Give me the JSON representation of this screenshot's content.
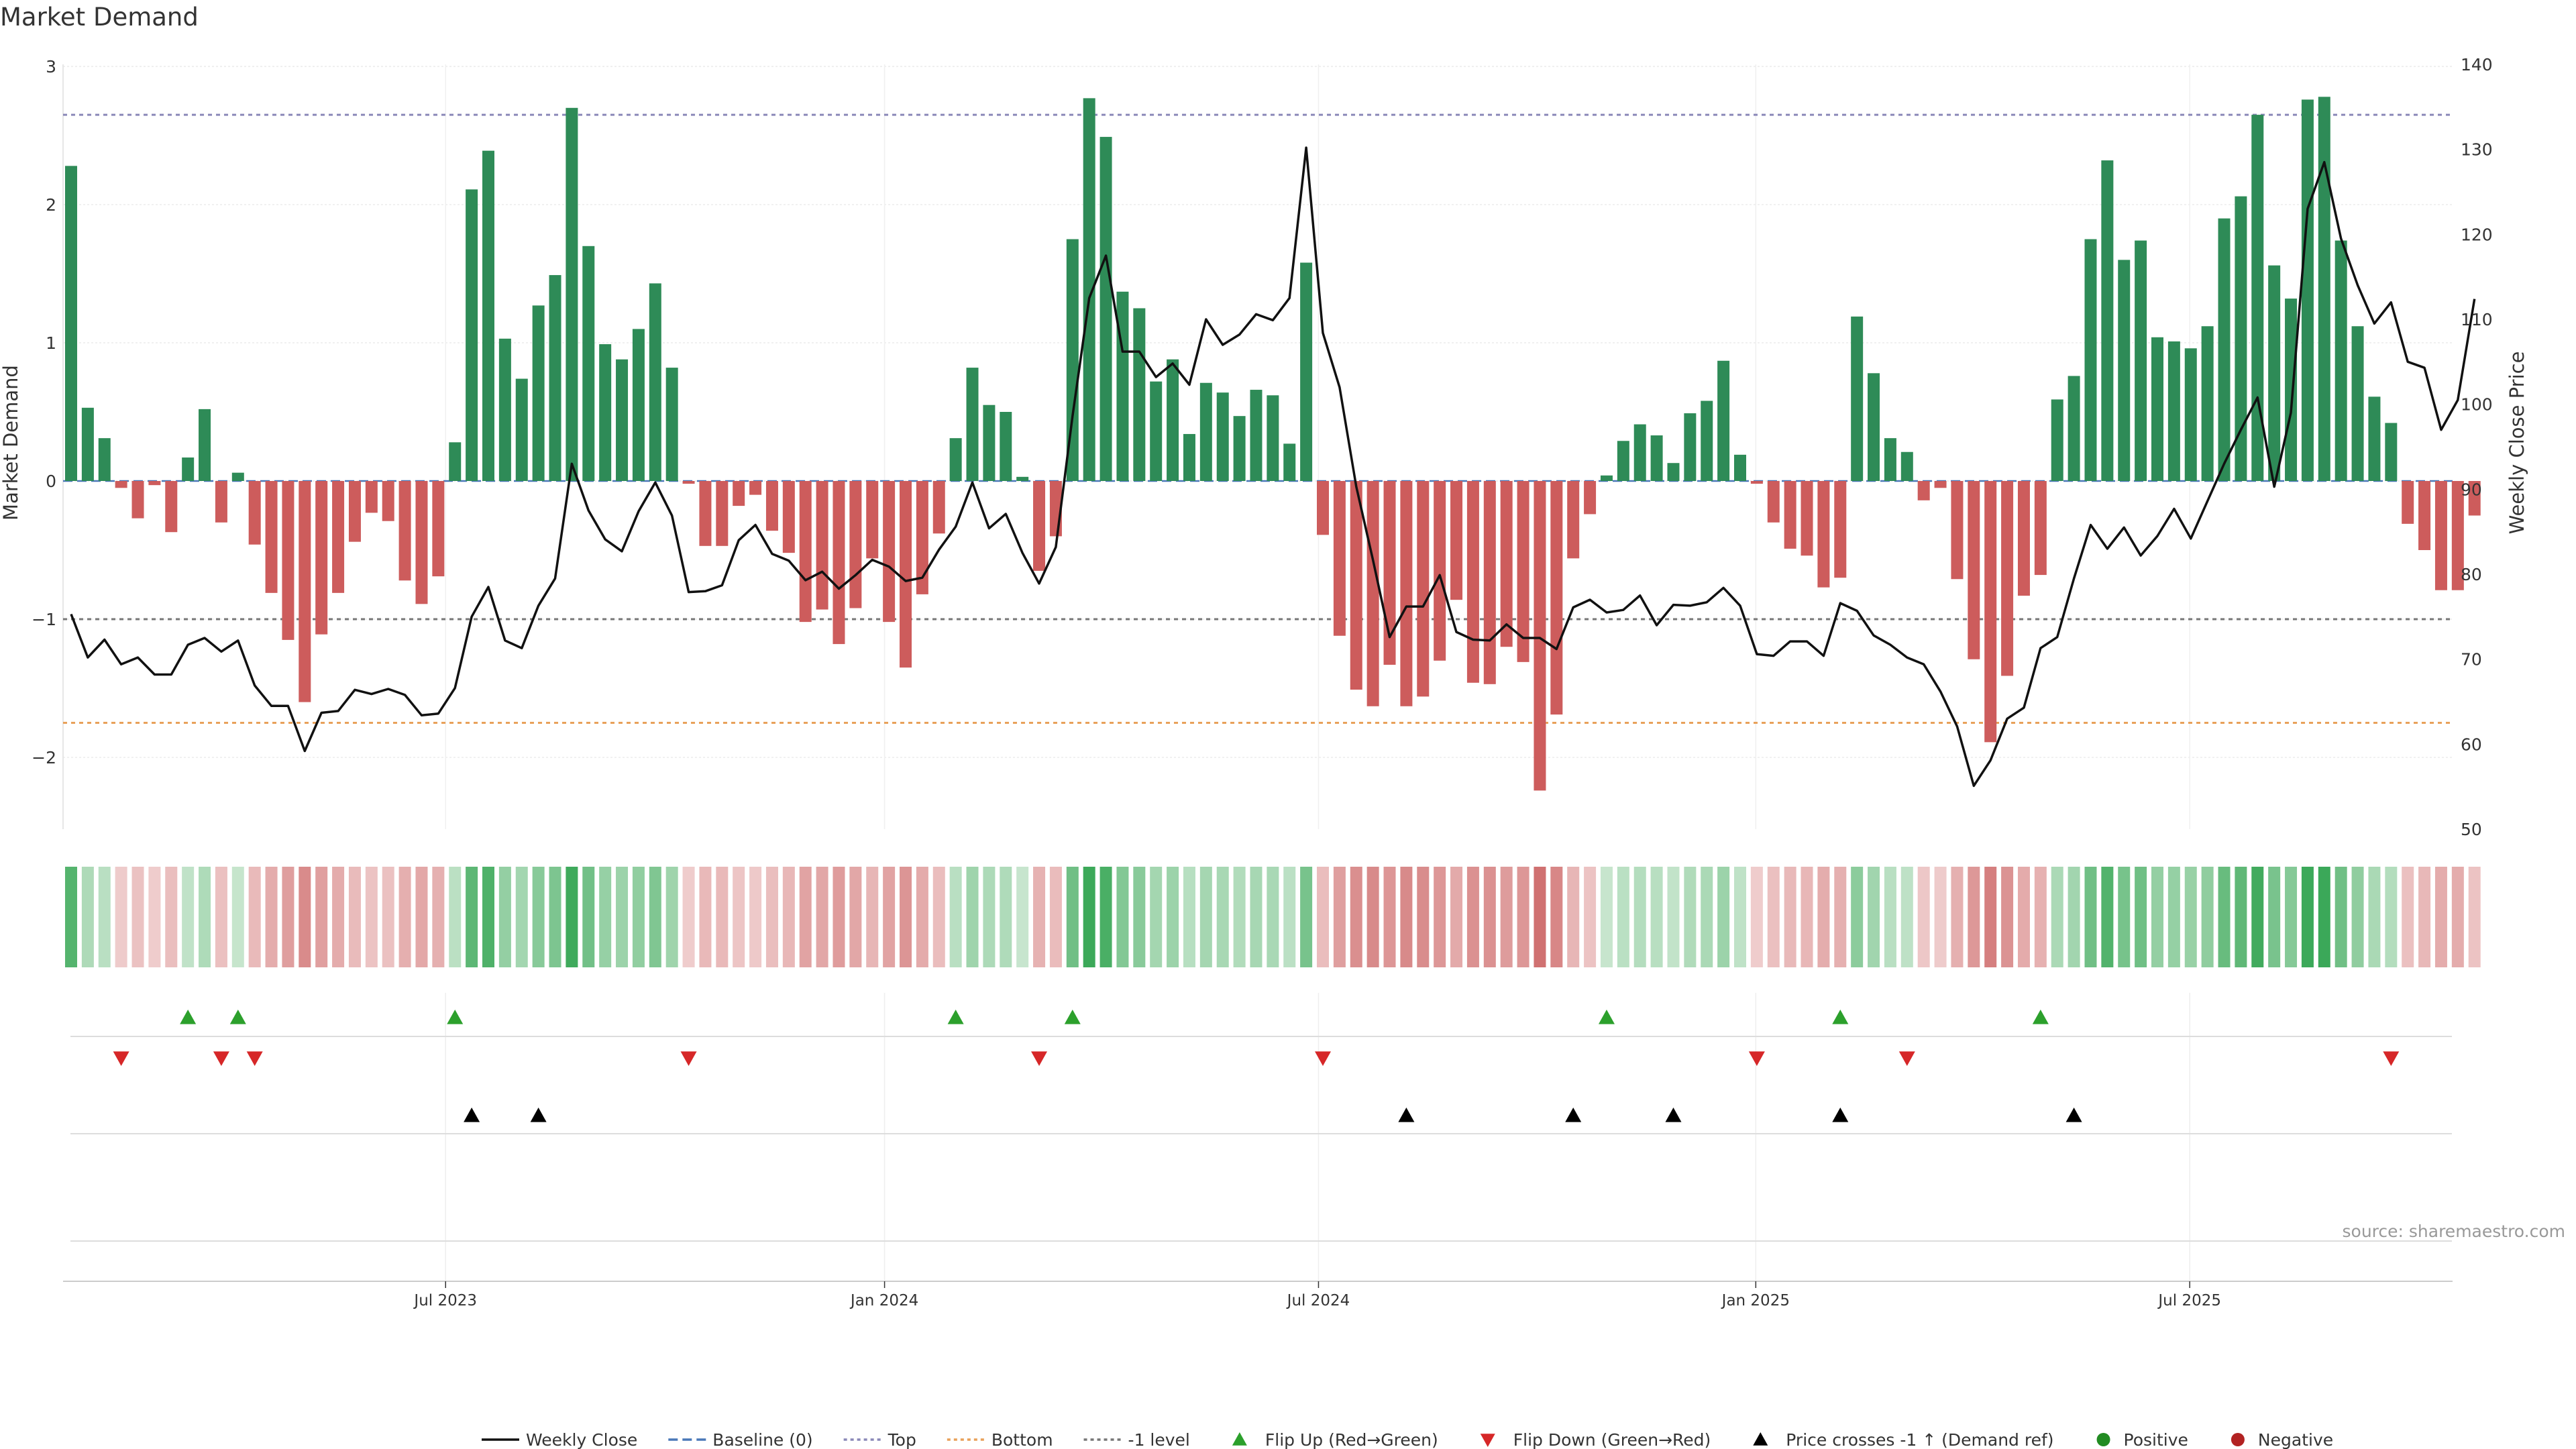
{
  "chart_data": {
    "type": "bar",
    "title": "Market Demand",
    "ylabel": "Market Demand",
    "y2label": "Weekly Close Price",
    "ylim": [
      -2.5,
      3
    ],
    "y2lim": [
      50,
      140
    ],
    "yticks": [
      "3",
      "2",
      "1",
      "0",
      "−1",
      "−2"
    ],
    "y2ticks": [
      "140",
      "130",
      "120",
      "110",
      "100",
      "90",
      "80",
      "70",
      "60",
      "50"
    ],
    "xticks": [
      "Jul 2023",
      "Jan 2024",
      "Jul 2024",
      "Jan 2025",
      "Jul 2025"
    ],
    "grid": true,
    "reference_lines": [
      {
        "name": "Top",
        "value": 2.65,
        "color": "#8a88b8"
      },
      {
        "name": "-1 level",
        "value": -1.0,
        "color": "#777777"
      },
      {
        "name": "Bottom",
        "value": -1.75,
        "color": "#e8a15a"
      }
    ],
    "series": [
      {
        "name": "Market Demand",
        "values": [
          2.28,
          0.53,
          0.31,
          -0.05,
          -0.27,
          -0.03,
          -0.37,
          0.17,
          0.52,
          -0.3,
          0.06,
          -0.46,
          -0.81,
          -1.15,
          -1.6,
          -1.11,
          -0.81,
          -0.44,
          -0.23,
          -0.29,
          -0.72,
          -0.89,
          -0.69,
          0.28,
          2.11,
          2.39,
          1.03,
          0.74,
          1.27,
          1.49,
          2.7,
          1.7,
          0.99,
          0.88,
          1.1,
          1.43,
          0.82,
          -0.02,
          -0.47,
          -0.47,
          -0.18,
          -0.1,
          -0.36,
          -0.52,
          -1.02,
          -0.93,
          -1.18,
          -0.92,
          -0.56,
          -1.02,
          -1.35,
          -0.82,
          -0.38,
          0.31,
          0.82,
          0.55,
          0.5,
          0.03,
          -0.65,
          -0.4,
          1.75,
          2.77,
          2.49,
          1.37,
          1.25,
          0.72,
          0.88,
          0.34,
          0.71,
          0.64,
          0.47,
          0.66,
          0.62,
          0.27,
          1.58,
          -0.39,
          -1.12,
          -1.51,
          -1.63,
          -1.33,
          -1.63,
          -1.56,
          -1.3,
          -0.86,
          -1.46,
          -1.47,
          -1.2,
          -1.31,
          -2.24,
          -1.69,
          -0.56,
          -0.24,
          0.04,
          0.29,
          0.41,
          0.33,
          0.13,
          0.49,
          0.58,
          0.87,
          0.19,
          -0.02,
          -0.3,
          -0.49,
          -0.54,
          -0.77,
          -0.7,
          1.19,
          0.78,
          0.31,
          0.21,
          -0.14,
          -0.05,
          -0.71,
          -1.29,
          -1.89,
          -1.41,
          -0.83,
          -0.68,
          0.59,
          0.76,
          1.75,
          2.32,
          1.6,
          1.74,
          1.04,
          1.01,
          0.96,
          1.12,
          1.9,
          2.06,
          2.65,
          1.56,
          1.32,
          2.76,
          2.78,
          1.74,
          1.12,
          0.61,
          0.42,
          -0.31,
          -0.5,
          -0.79,
          -0.79,
          -0.25
        ]
      },
      {
        "name": "Weekly Close",
        "values": [
          75.3,
          70.2,
          72.3,
          69.4,
          70.2,
          68.2,
          68.2,
          71.7,
          72.5,
          70.9,
          72.2,
          66.9,
          64.5,
          64.5,
          59.2,
          63.7,
          63.9,
          66.4,
          65.9,
          66.5,
          65.8,
          63.4,
          63.6,
          66.6,
          75.0,
          78.5,
          72.2,
          71.3,
          76.3,
          79.5,
          93.0,
          87.5,
          84.1,
          82.7,
          87.4,
          90.8,
          86.9,
          77.9,
          78.0,
          78.7,
          84.0,
          85.8,
          82.4,
          81.6,
          79.3,
          80.3,
          78.3,
          79.9,
          81.7,
          80.9,
          79.2,
          79.6,
          82.9,
          85.6,
          90.8,
          85.4,
          87.1,
          82.5,
          78.9,
          83.2,
          98.6,
          112.5,
          117.5,
          106.2,
          106.2,
          103.2,
          104.8,
          102.3,
          110.0,
          107.0,
          108.2,
          110.6,
          109.9,
          112.5,
          130.2,
          108.4,
          102.0,
          90.3,
          81.7,
          72.6,
          76.2,
          76.2,
          79.9,
          73.2,
          72.3,
          72.2,
          74.1,
          72.5,
          72.5,
          71.2,
          76.1,
          77.0,
          75.5,
          75.8,
          77.5,
          74.0,
          76.4,
          76.3,
          76.7,
          78.4,
          76.3,
          70.6,
          70.4,
          72.1,
          72.1,
          70.4,
          76.6,
          75.7,
          72.8,
          71.7,
          70.2,
          69.4,
          66.2,
          62.1,
          55.1,
          58.1,
          63.0,
          64.3,
          71.3,
          72.6,
          79.5,
          85.8,
          83.0,
          85.5,
          82.2,
          84.5,
          87.7,
          84.2,
          88.6,
          93.0,
          97.0,
          100.8,
          90.3,
          99.0,
          123.0,
          128.5,
          119.5,
          114.0,
          109.5,
          112.0,
          105.0,
          104.3,
          97.0,
          100.5,
          112.4
        ]
      }
    ],
    "markers": {
      "flip_up_weeks": [
        7,
        10,
        23,
        53,
        60,
        92,
        106,
        118
      ],
      "flip_down_weeks": [
        3,
        9,
        11,
        37,
        58,
        75,
        101,
        110,
        139
      ],
      "price_cross_weeks": [
        24,
        28,
        80,
        90,
        96,
        106,
        120
      ]
    },
    "x_start": "2023-01-22",
    "colors": {
      "positive_bar": "#2e8b57",
      "negative_bar": "#cd5c5c",
      "price_line": "#111111",
      "flip_up": "#2ca02c",
      "flip_down": "#d62728",
      "price_cross": "#000000",
      "heat_pos_strong": "#3aa858",
      "heat_neg_strong": "#c85a5a"
    }
  },
  "source_text": "source: sharemaestro.com",
  "legend": [
    {
      "label": "Weekly Close",
      "kind": "line",
      "color": "#111111",
      "dash": ""
    },
    {
      "label": "Baseline (0)",
      "kind": "line",
      "color": "#4a78b8",
      "dash": "14,7"
    },
    {
      "label": "Top",
      "kind": "line",
      "color": "#8a88b8",
      "dash": "5,5"
    },
    {
      "label": "Bottom",
      "kind": "line",
      "color": "#e8a15a",
      "dash": "5,5"
    },
    {
      "label": "-1 level",
      "kind": "line",
      "color": "#777777",
      "dash": "5,5"
    },
    {
      "label": "Flip Up (Red→Green)",
      "kind": "tri-up",
      "color": "#2ca02c"
    },
    {
      "label": "Flip Down (Green→Red)",
      "kind": "tri-down",
      "color": "#d62728"
    },
    {
      "label": "Price crosses -1 ↑ (Demand ref)",
      "kind": "tri-up",
      "color": "#000000"
    },
    {
      "label": "Positive",
      "kind": "dot",
      "color": "#228b22"
    },
    {
      "label": "Negative",
      "kind": "dot",
      "color": "#b22222"
    }
  ]
}
